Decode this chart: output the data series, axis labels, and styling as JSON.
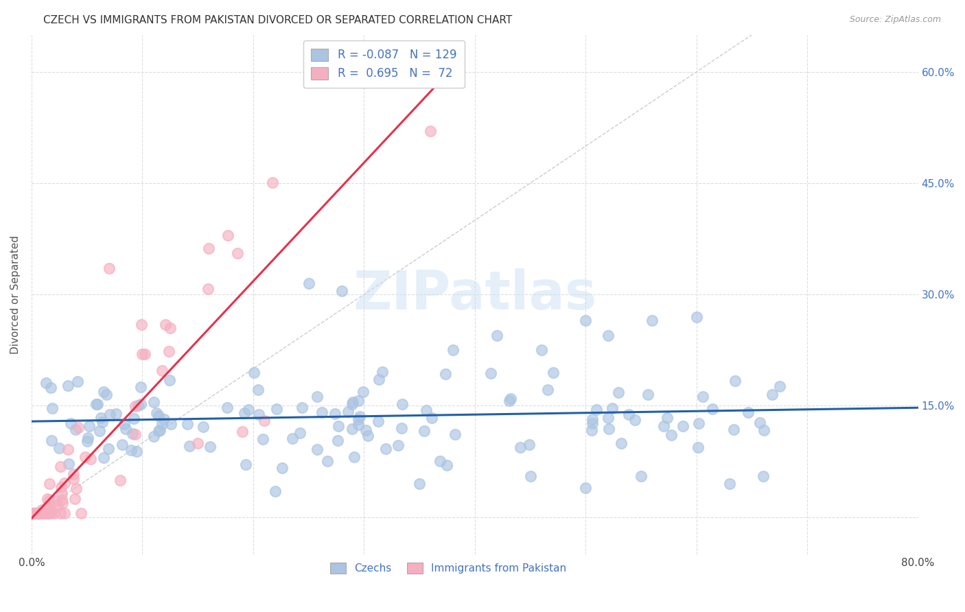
{
  "title": "CZECH VS IMMIGRANTS FROM PAKISTAN DIVORCED OR SEPARATED CORRELATION CHART",
  "source": "Source: ZipAtlas.com",
  "ylabel": "Divorced or Separated",
  "xlim": [
    0.0,
    0.8
  ],
  "ylim": [
    -0.05,
    0.65
  ],
  "blue_color": "#aac4e2",
  "pink_color": "#f5afc0",
  "blue_line_color": "#2060a8",
  "pink_line_color": "#e8304a",
  "diagonal_color": "#cccccc",
  "watermark": "ZIPatlas",
  "czechs_label": "Czechs",
  "pakistan_label": "Immigrants from Pakistan",
  "background_color": "#ffffff",
  "grid_color": "#dddddd",
  "right_tick_color": "#4472c4",
  "left_tick_color": "#333333"
}
